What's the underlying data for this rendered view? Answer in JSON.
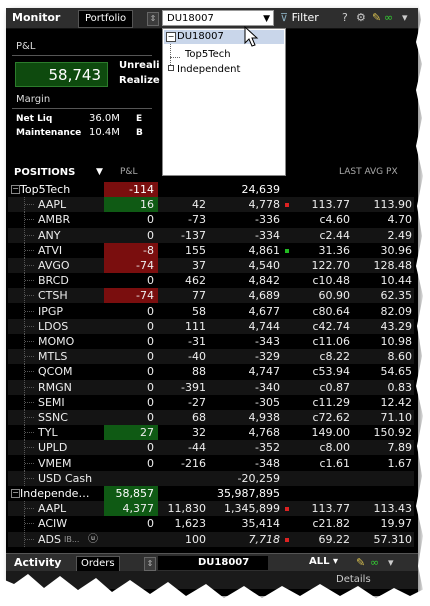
{
  "monitor": {
    "title": "Monitor",
    "tab": "Portfolio",
    "account_selected": "DU18007",
    "filter_label": "Filter",
    "help_label": "?"
  },
  "dropdown": {
    "items": [
      "DU18007",
      "Top5Tech",
      "Independent"
    ]
  },
  "pnl_section": {
    "label": "P&L",
    "value": "58,743",
    "unrealized_label": "Unreali",
    "realized_label": "Realize"
  },
  "margin": {
    "label": "Margin",
    "net_liq_label": "Net Liq",
    "net_liq_value": "36.0M",
    "net_liq_trailing": "E",
    "maintenance_label": "Maintenance",
    "maintenance_value": "10.4M",
    "maintenance_trailing": "B"
  },
  "positions": {
    "header_label": "POSITIONS",
    "pnl_col": "P&L",
    "last_avg_label": "LAST AVG PX",
    "rows": [
      {
        "kind": "group",
        "expander": "−",
        "symbol": "Top5Tech",
        "pnl": "-114",
        "pnl_style": "neg",
        "position": "",
        "mv": "24,639",
        "mark": "",
        "last": "",
        "avg": ""
      },
      {
        "kind": "item",
        "symbol": "AAPL",
        "pnl": "16",
        "pnl_style": "pos",
        "position": "42",
        "mv": "4,778",
        "mark": "red",
        "last": "113.77",
        "avg": "113.90"
      },
      {
        "kind": "item",
        "symbol": "AMBR",
        "pnl": "0",
        "pnl_style": "",
        "position": "-73",
        "mv": "-336",
        "mark": "",
        "last": "c4.60",
        "avg": "4.70"
      },
      {
        "kind": "item",
        "symbol": "ANY",
        "pnl": "0",
        "pnl_style": "",
        "position": "-137",
        "mv": "-334",
        "mark": "",
        "last": "c2.44",
        "avg": "2.49"
      },
      {
        "kind": "item",
        "symbol": "ATVI",
        "pnl": "-8",
        "pnl_style": "neg",
        "position": "155",
        "mv": "4,861",
        "mark": "green",
        "last": "31.36",
        "avg": "30.96"
      },
      {
        "kind": "item",
        "symbol": "AVGO",
        "pnl": "-74",
        "pnl_style": "neg",
        "position": "37",
        "mv": "4,540",
        "mark": "",
        "last": "122.70",
        "avg": "128.48"
      },
      {
        "kind": "item",
        "symbol": "BRCD",
        "pnl": "0",
        "pnl_style": "",
        "position": "462",
        "mv": "4,842",
        "mark": "",
        "last": "c10.48",
        "avg": "10.44"
      },
      {
        "kind": "item",
        "symbol": "CTSH",
        "pnl": "-74",
        "pnl_style": "neg",
        "position": "77",
        "mv": "4,689",
        "mark": "",
        "last": "60.90",
        "avg": "62.35"
      },
      {
        "kind": "item",
        "symbol": "IPGP",
        "pnl": "0",
        "pnl_style": "",
        "position": "58",
        "mv": "4,677",
        "mark": "",
        "last": "c80.64",
        "avg": "82.09"
      },
      {
        "kind": "item",
        "symbol": "LDOS",
        "pnl": "0",
        "pnl_style": "",
        "position": "111",
        "mv": "4,744",
        "mark": "",
        "last": "c42.74",
        "avg": "43.29"
      },
      {
        "kind": "item",
        "symbol": "MOMO",
        "pnl": "0",
        "pnl_style": "",
        "position": "-31",
        "mv": "-343",
        "mark": "",
        "last": "c11.06",
        "avg": "10.98"
      },
      {
        "kind": "item",
        "symbol": "MTLS",
        "pnl": "0",
        "pnl_style": "",
        "position": "-40",
        "mv": "-329",
        "mark": "",
        "last": "c8.22",
        "avg": "8.60"
      },
      {
        "kind": "item",
        "symbol": "QCOM",
        "pnl": "0",
        "pnl_style": "",
        "position": "88",
        "mv": "4,747",
        "mark": "",
        "last": "c53.94",
        "avg": "54.65"
      },
      {
        "kind": "item",
        "symbol": "RMGN",
        "pnl": "0",
        "pnl_style": "",
        "position": "-391",
        "mv": "-340",
        "mark": "",
        "last": "c0.87",
        "avg": "0.83"
      },
      {
        "kind": "item",
        "symbol": "SEMI",
        "pnl": "0",
        "pnl_style": "",
        "position": "-27",
        "mv": "-305",
        "mark": "",
        "last": "c11.29",
        "avg": "12.42"
      },
      {
        "kind": "item",
        "symbol": "SSNC",
        "pnl": "0",
        "pnl_style": "",
        "position": "68",
        "mv": "4,938",
        "mark": "",
        "last": "c72.62",
        "avg": "71.10"
      },
      {
        "kind": "item",
        "symbol": "TYL",
        "pnl": "27",
        "pnl_style": "pos",
        "position": "32",
        "mv": "4,768",
        "mark": "",
        "last": "149.00",
        "avg": "150.92"
      },
      {
        "kind": "item",
        "symbol": "UPLD",
        "pnl": "0",
        "pnl_style": "",
        "position": "-44",
        "mv": "-352",
        "mark": "",
        "last": "c8.00",
        "avg": "7.89"
      },
      {
        "kind": "item",
        "symbol": "VMEM",
        "pnl": "0",
        "pnl_style": "",
        "position": "-216",
        "mv": "-348",
        "mark": "",
        "last": "c1.61",
        "avg": "1.67"
      },
      {
        "kind": "item",
        "symbol": "USD Cash",
        "pnl": "",
        "pnl_style": "",
        "position": "",
        "mv": "-20,259",
        "mark": "",
        "last": "",
        "avg": ""
      },
      {
        "kind": "group",
        "expander": "−",
        "symbol": "Independe…",
        "pnl": "58,857",
        "pnl_style": "pos",
        "position": "",
        "mv": "35,987,895",
        "mark": "",
        "last": "",
        "avg": ""
      },
      {
        "kind": "item",
        "symbol": "AAPL",
        "pnl": "4,377",
        "pnl_style": "pos",
        "position": "11,830",
        "mv": "1,345,899",
        "mark": "red",
        "last": "113.77",
        "avg": "113.43"
      },
      {
        "kind": "item",
        "symbol": "ACIW",
        "pnl": "0",
        "pnl_style": "",
        "position": "1,623",
        "mv": "35,414",
        "mark": "",
        "last": "c21.82",
        "avg": "19.97"
      },
      {
        "kind": "item",
        "symbol": "ADS",
        "exchange": "IB...",
        "pnl": "",
        "pnl_style": "",
        "position": "100",
        "mv": "7,718",
        "mv_italic": true,
        "mark": "red",
        "last": "69.22",
        "avg": "57.310"
      }
    ]
  },
  "activity": {
    "title": "Activity",
    "tab": "Orders",
    "account": "DU18007",
    "all_label": "ALL",
    "sub_labels": [
      "Details"
    ]
  },
  "colors": {
    "background": "#000000",
    "titlebar": "#2e2e2e",
    "pnl_positive": "#0f5a14",
    "pnl_negative": "#7a0e0e",
    "dropdown_selection": "#c9d6ea"
  }
}
